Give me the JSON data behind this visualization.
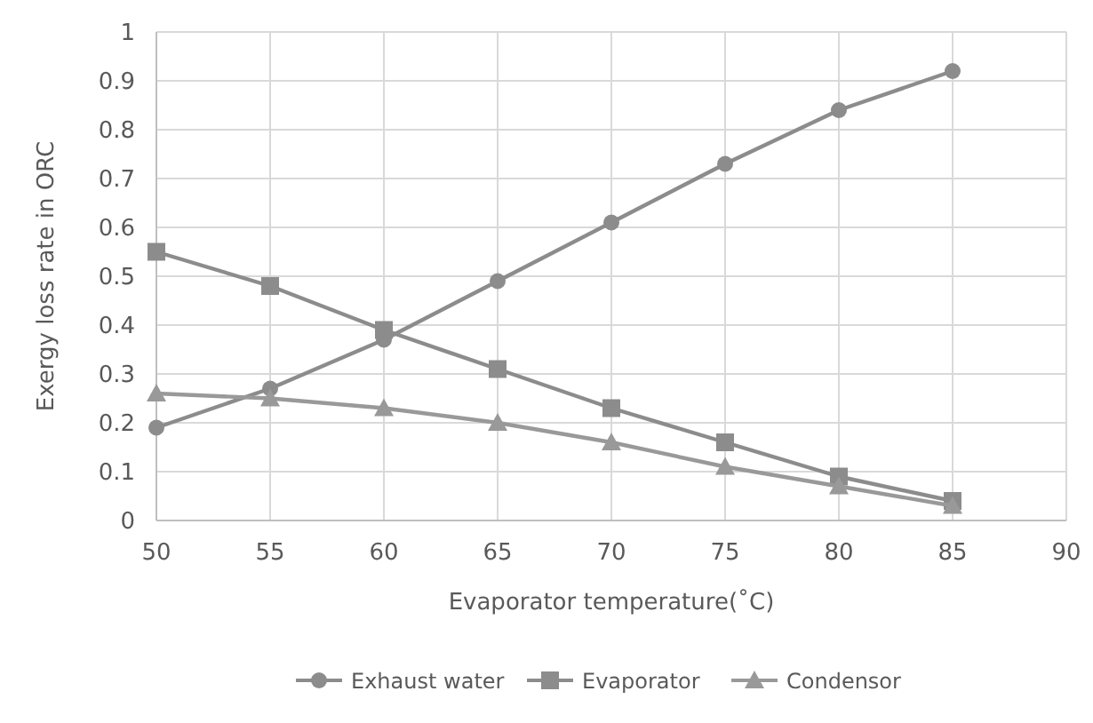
{
  "chart_data": {
    "type": "line",
    "xlabel": "Evaporator temperature(˚C)",
    "ylabel": "Exergy loss rate in ORC",
    "x": [
      50,
      55,
      60,
      65,
      70,
      75,
      80,
      85
    ],
    "series": [
      {
        "name": "Exhaust water",
        "color": "#8c8c8c",
        "marker": "circle",
        "values": [
          0.19,
          0.27,
          0.37,
          0.49,
          0.61,
          0.73,
          0.84,
          0.92
        ]
      },
      {
        "name": "Evaporator",
        "color": "#8c8c8c",
        "marker": "square",
        "values": [
          0.55,
          0.48,
          0.39,
          0.31,
          0.23,
          0.16,
          0.09,
          0.04
        ]
      },
      {
        "name": "Condensor",
        "color": "#999999",
        "marker": "triangle",
        "values": [
          0.26,
          0.25,
          0.23,
          0.2,
          0.16,
          0.11,
          0.07,
          0.03
        ]
      }
    ],
    "xlim": [
      50,
      90
    ],
    "xticks": [
      50,
      55,
      60,
      65,
      70,
      75,
      80,
      85,
      90
    ],
    "ylim": [
      0,
      1
    ],
    "yticks": [
      0,
      0.1,
      0.2,
      0.3,
      0.4,
      0.5,
      0.6,
      0.7,
      0.8,
      0.9,
      1
    ],
    "grid": true,
    "legend": "bottom",
    "line_style": "solid"
  }
}
